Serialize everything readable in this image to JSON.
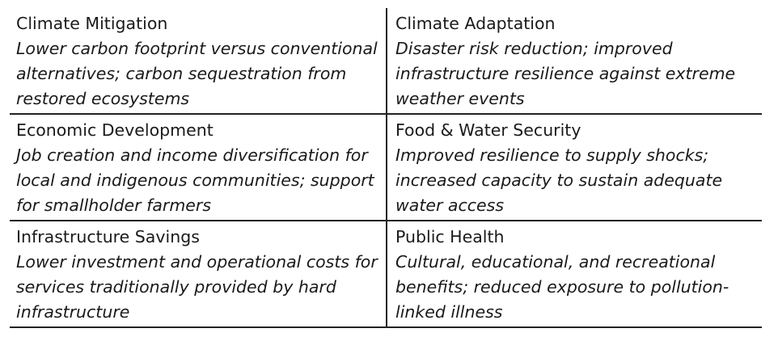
{
  "rows": [
    [
      {
        "title": "Climate Mitigation",
        "description": "Lower carbon footprint versus conventional alternatives; carbon sequestration from restored ecosystems"
      },
      {
        "title": "Climate Adaptation",
        "description": "Disaster risk reduction; improved infrastructure resilience against extreme weather events"
      }
    ],
    [
      {
        "title": "Economic Development",
        "description": "Job creation and income diversification for local and indigenous communities; support for smallholder farmers"
      },
      {
        "title": "Food & Water Security",
        "description": "Improved resilience to supply shocks; increased capacity to sustain adequate water access"
      }
    ],
    [
      {
        "title": "Infrastructure Savings",
        "description": "Lower investment and operational costs for services traditionally provided by hard infrastructure"
      },
      {
        "title": "Public Health",
        "description": "Cultural, educational, and recreational benefits; reduced exposure to pollution-linked illness"
      }
    ]
  ]
}
